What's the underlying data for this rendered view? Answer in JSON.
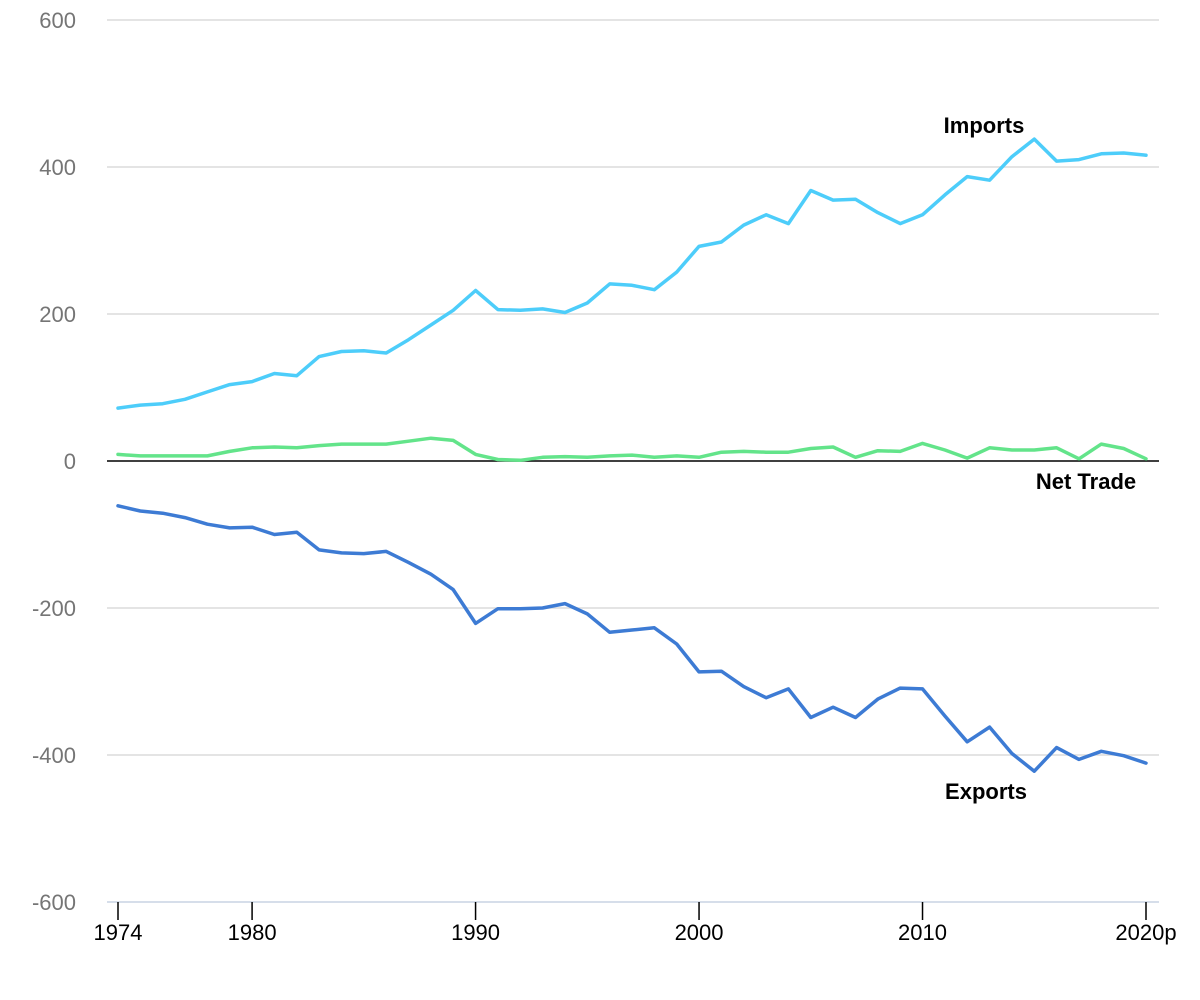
{
  "chart_data": {
    "type": "line",
    "title": "",
    "xlabel": "",
    "ylabel": "",
    "ylim": [
      -600,
      600
    ],
    "yticks": [
      600,
      400,
      200,
      0,
      -200,
      -400,
      -600
    ],
    "xlim": [
      1974,
      2020
    ],
    "xticks": [
      {
        "value": 1974,
        "label": "1974"
      },
      {
        "value": 1980,
        "label": "1980"
      },
      {
        "value": 1990,
        "label": "1990"
      },
      {
        "value": 2000,
        "label": "2000"
      },
      {
        "value": 2010,
        "label": "2010"
      },
      {
        "value": 2020,
        "label": "2020p"
      }
    ],
    "grid": true,
    "x": [
      1974,
      1975,
      1976,
      1977,
      1978,
      1979,
      1980,
      1981,
      1982,
      1983,
      1984,
      1985,
      1986,
      1987,
      1988,
      1989,
      1990,
      1991,
      1992,
      1993,
      1994,
      1995,
      1996,
      1997,
      1998,
      1999,
      2000,
      2001,
      2002,
      2003,
      2004,
      2005,
      2006,
      2007,
      2008,
      2009,
      2010,
      2011,
      2012,
      2013,
      2014,
      2015,
      2016,
      2017,
      2018,
      2019,
      2020
    ],
    "series": [
      {
        "name": "Imports",
        "color": "#4dcdfa",
        "values": [
          72,
          76,
          78,
          84,
          94,
          104,
          108,
          119,
          116,
          142,
          149,
          150,
          147,
          165,
          185,
          205,
          232,
          206,
          205,
          207,
          202,
          215,
          241,
          239,
          233,
          257,
          292,
          298,
          321,
          335,
          323,
          368,
          355,
          356,
          338,
          323,
          335,
          362,
          387,
          382,
          414,
          438,
          408,
          410,
          418,
          419,
          416
        ]
      },
      {
        "name": "Net Trade",
        "color": "#63e48a",
        "values": [
          9,
          7,
          7,
          7,
          7,
          13,
          18,
          19,
          18,
          21,
          23,
          23,
          23,
          27,
          31,
          28,
          9,
          2,
          1,
          5,
          6,
          5,
          7,
          8,
          5,
          7,
          5,
          12,
          13,
          12,
          12,
          17,
          19,
          5,
          14,
          13,
          24,
          15,
          4,
          18,
          15,
          15,
          18,
          3,
          23,
          17,
          3
        ]
      },
      {
        "name": "Exports",
        "color": "#3d7bd4",
        "values": [
          -61,
          -68,
          -71,
          -77,
          -86,
          -91,
          -90,
          -100,
          -97,
          -121,
          -125,
          -126,
          -123,
          -138,
          -154,
          -175,
          -221,
          -201,
          -201,
          -200,
          -194,
          -208,
          -233,
          -230,
          -227,
          -249,
          -287,
          -286,
          -307,
          -322,
          -310,
          -349,
          -335,
          -349,
          -324,
          -309,
          -310,
          -347,
          -382,
          -362,
          -398,
          -422,
          -390,
          -406,
          -395,
          -401,
          -411
        ]
      }
    ],
    "annotations": [
      {
        "text": "Imports",
        "series": "Imports"
      },
      {
        "text": "Net Trade",
        "series": "Net Trade"
      },
      {
        "text": "Exports",
        "series": "Exports"
      }
    ]
  }
}
